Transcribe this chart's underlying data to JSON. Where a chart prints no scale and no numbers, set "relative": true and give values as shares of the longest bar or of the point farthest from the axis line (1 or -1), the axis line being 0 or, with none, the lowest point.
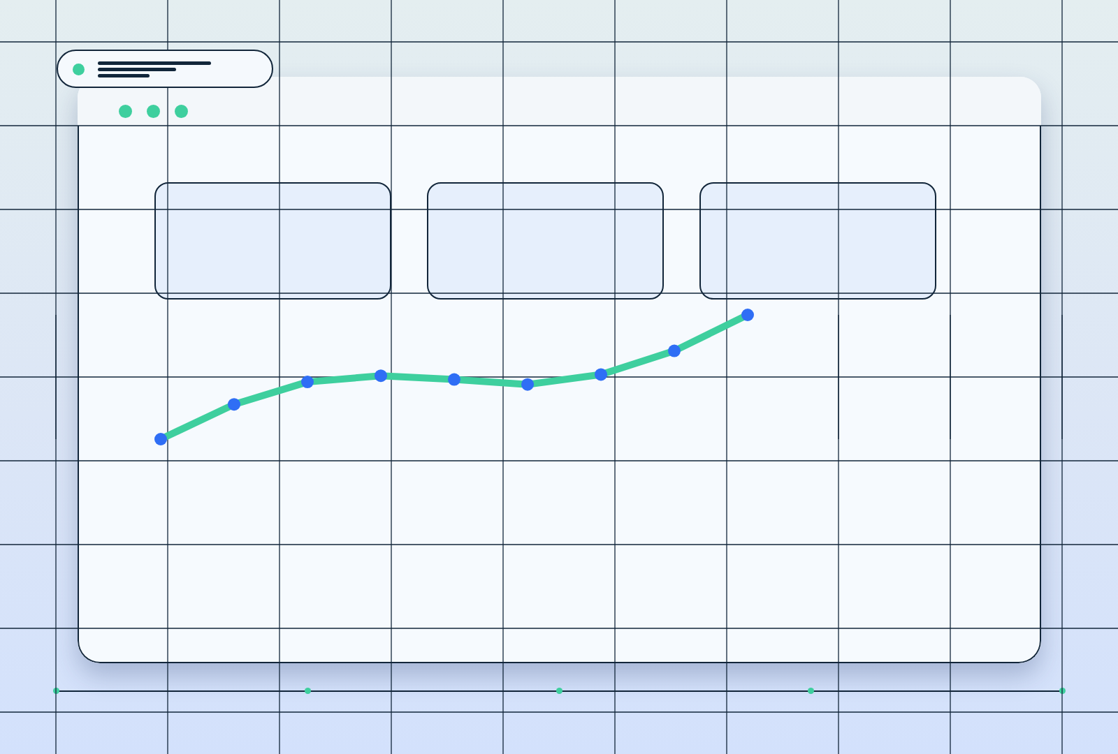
{
  "chart_data": {
    "type": "line",
    "relative": true,
    "grid": true,
    "marker": "circle",
    "categories": [
      null,
      null,
      null,
      null,
      null,
      null,
      null,
      null,
      null
    ],
    "series": [
      {
        "color": "#3ecf9e",
        "values": [
          0,
          0.28,
          0.46,
          0.51,
          0.48,
          0.44,
          0.52,
          0.71,
          1
        ]
      }
    ]
  }
}
